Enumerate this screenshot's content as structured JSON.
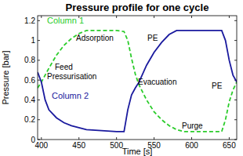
{
  "chart_data": {
    "type": "line",
    "title": "Pressure profile for one cycle",
    "x_label": "Time [s]",
    "y_label": "Pressure [bar]",
    "x": [
      395,
      400,
      405,
      410,
      420,
      430,
      440,
      450,
      460,
      480,
      500,
      510,
      515,
      520,
      525,
      530,
      540,
      550,
      560,
      570,
      580,
      590,
      600,
      620,
      640,
      645,
      650,
      655,
      660
    ],
    "series": [
      {
        "name": "Column 1",
        "color": "#2bcc2b",
        "line_style": "dashed",
        "values": [
          0.52,
          0.58,
          0.65,
          0.72,
          0.85,
          0.95,
          1.02,
          1.07,
          1.1,
          1.1,
          1.1,
          1.09,
          1.0,
          0.82,
          0.66,
          0.55,
          0.4,
          0.28,
          0.2,
          0.14,
          0.1,
          0.08,
          0.08,
          0.08,
          0.08,
          0.2,
          0.38,
          0.5,
          0.58
        ]
      },
      {
        "name": "Column 2",
        "color": "#1a1a9e",
        "line_style": "solid",
        "values": [
          0.68,
          0.58,
          0.4,
          0.3,
          0.22,
          0.17,
          0.14,
          0.12,
          0.1,
          0.09,
          0.08,
          0.08,
          0.3,
          0.45,
          0.52,
          0.58,
          0.75,
          0.88,
          0.98,
          1.06,
          1.1,
          1.1,
          1.1,
          1.1,
          1.1,
          1.0,
          0.8,
          0.65,
          0.58
        ]
      }
    ],
    "annotations": [
      {
        "text": "Adsorption",
        "color": "#000000"
      },
      {
        "text": "PE",
        "color": "#000000"
      },
      {
        "text": "Feed",
        "color": "#000000"
      },
      {
        "text": "Pressurisation",
        "color": "#000000"
      },
      {
        "text": "Evacuation",
        "color": "#000000"
      },
      {
        "text": "PE",
        "color": "#000000"
      },
      {
        "text": "Purge",
        "color": "#000000"
      }
    ],
    "xlim": [
      395,
      660
    ],
    "ylim": [
      0,
      1.25
    ],
    "xticks": [
      400,
      450,
      500,
      550,
      600,
      650
    ],
    "yticks": [
      0,
      0.2,
      0.4,
      0.6,
      0.8,
      1,
      1.2
    ],
    "grid": false
  }
}
